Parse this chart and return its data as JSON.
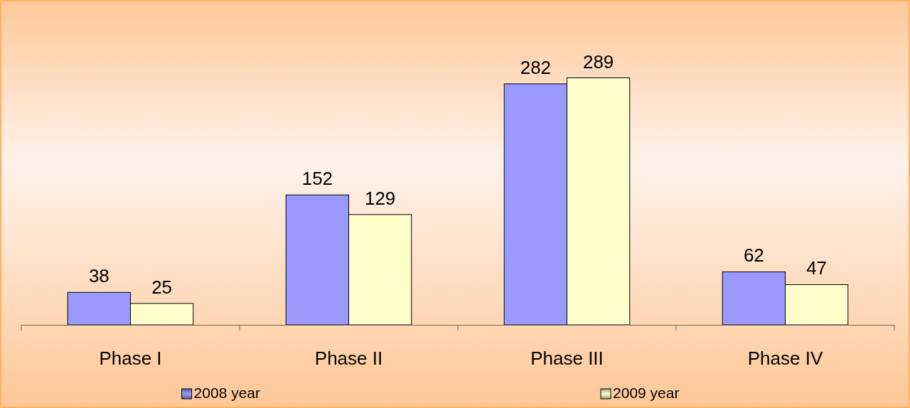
{
  "chart_data": {
    "type": "bar",
    "categories": [
      "Phase I",
      "Phase II",
      "Phase III",
      "Phase IV"
    ],
    "series": [
      {
        "name": "2008 year",
        "color": "#9999ff",
        "values": [
          38,
          152,
          282,
          62
        ]
      },
      {
        "name": "2009 year",
        "color": "#ffffcc",
        "values": [
          25,
          129,
          289,
          47
        ]
      }
    ],
    "data_labels": true,
    "legend": "bottom",
    "grid": false
  }
}
